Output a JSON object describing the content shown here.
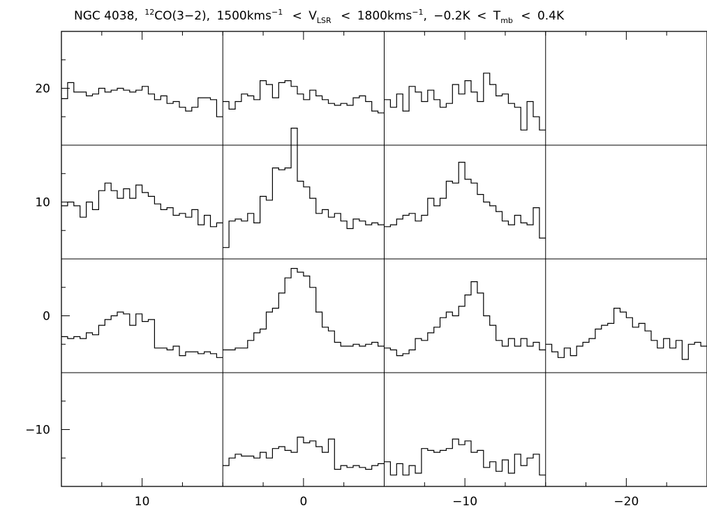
{
  "chart_data": {
    "type": "line",
    "title": {
      "object": "NGC 4038,",
      "iso_sup": "12",
      "line": "CO(3−2),",
      "vmin": "1500kms",
      "vmin_sup": "−1",
      "lt1": "<",
      "v": "V",
      "v_sub": "LSR",
      "lt2": "<",
      "vmax": "1800kms",
      "vmax_sup": "−1",
      "comma": ",",
      "tmin": "−0.2K",
      "lt3": "<",
      "t": "T",
      "t_sub": "mb",
      "lt4": "<",
      "tmax": "0.4K"
    },
    "xlabel": "",
    "ylabel": "",
    "xlim": [
      15,
      -25
    ],
    "ylim": [
      -15,
      25
    ],
    "grid": false,
    "x_ticks": [
      {
        "value": 10,
        "label": "10"
      },
      {
        "value": 0,
        "label": "0"
      },
      {
        "value": -10,
        "label": "−10"
      },
      {
        "value": -20,
        "label": "−20"
      }
    ],
    "y_ticks": [
      {
        "value": 20,
        "label": "20"
      },
      {
        "value": 10,
        "label": "10"
      },
      {
        "value": 0,
        "label": "0"
      },
      {
        "value": -10,
        "label": "−10"
      }
    ],
    "cell_size": 10,
    "spectrum_range": {
      "v_min_kms": 1500,
      "v_max_kms": 1800,
      "t_min_K": -0.2,
      "t_max_K": 0.4
    },
    "spectra": [
      {
        "offset": [
          10,
          20
        ],
        "values": [
          0.045,
          0.13,
          0.08,
          0.08,
          0.06,
          0.07,
          0.1,
          0.08,
          0.09,
          0.1,
          0.09,
          0.08,
          0.09,
          0.11,
          0.07,
          0.04,
          0.06,
          0.02,
          0.03,
          0.0,
          -0.02,
          0.0,
          0.05,
          0.05,
          0.04,
          -0.05
        ]
      },
      {
        "offset": [
          0,
          20
        ],
        "values": [
          0.03,
          -0.01,
          0.03,
          0.07,
          0.06,
          0.04,
          0.14,
          0.12,
          0.05,
          0.13,
          0.14,
          0.11,
          0.07,
          0.04,
          0.09,
          0.06,
          0.04,
          0.02,
          0.01,
          0.02,
          0.01,
          0.05,
          0.06,
          0.03,
          -0.02,
          -0.03
        ]
      },
      {
        "offset": [
          -10,
          20
        ],
        "values": [
          0.04,
          0.0,
          0.07,
          -0.02,
          0.11,
          0.08,
          0.03,
          0.09,
          0.04,
          0.0,
          0.02,
          0.12,
          0.07,
          0.14,
          0.08,
          0.03,
          0.18,
          0.12,
          0.06,
          0.07,
          0.02,
          0.0,
          -0.12,
          0.03,
          -0.05,
          -0.12
        ]
      },
      {
        "offset": [
          10,
          10
        ],
        "values": [
          0.08,
          0.1,
          0.08,
          0.02,
          0.1,
          0.06,
          0.16,
          0.2,
          0.16,
          0.12,
          0.17,
          0.12,
          0.19,
          0.15,
          0.13,
          0.09,
          0.06,
          0.07,
          0.03,
          0.04,
          0.02,
          0.06,
          -0.02,
          0.03,
          -0.03,
          -0.01
        ]
      },
      {
        "offset": [
          0,
          10
        ],
        "values": [
          -0.14,
          0.0,
          0.01,
          0.0,
          0.04,
          -0.01,
          0.13,
          0.11,
          0.28,
          0.27,
          0.28,
          0.49,
          0.21,
          0.18,
          0.12,
          0.04,
          0.06,
          0.02,
          0.04,
          0.0,
          -0.04,
          0.01,
          0.0,
          -0.02,
          -0.01,
          -0.02
        ]
      },
      {
        "offset": [
          -10,
          10
        ],
        "values": [
          -0.03,
          -0.02,
          0.01,
          0.03,
          0.04,
          0.0,
          0.03,
          0.12,
          0.08,
          0.12,
          0.21,
          0.2,
          0.31,
          0.22,
          0.2,
          0.14,
          0.1,
          0.08,
          0.05,
          0.0,
          -0.02,
          0.03,
          -0.01,
          -0.02,
          0.07,
          -0.09
        ]
      },
      {
        "offset": [
          10,
          0
        ],
        "values": [
          -0.01,
          -0.02,
          -0.01,
          -0.02,
          0.01,
          0.0,
          0.05,
          0.08,
          0.1,
          0.12,
          0.11,
          0.05,
          0.11,
          0.07,
          0.08,
          -0.07,
          -0.07,
          -0.08,
          -0.06,
          -0.11,
          -0.09,
          -0.09,
          -0.1,
          -0.09,
          -0.1,
          -0.12
        ]
      },
      {
        "offset": [
          0,
          0
        ],
        "values": [
          -0.08,
          -0.08,
          -0.07,
          -0.07,
          -0.03,
          0.01,
          0.03,
          0.12,
          0.14,
          0.22,
          0.3,
          0.35,
          0.33,
          0.31,
          0.25,
          0.12,
          0.04,
          0.02,
          -0.04,
          -0.06,
          -0.06,
          -0.05,
          -0.06,
          -0.05,
          -0.04,
          -0.06
        ]
      },
      {
        "offset": [
          -10,
          0
        ],
        "values": [
          -0.07,
          -0.08,
          -0.11,
          -0.1,
          -0.08,
          -0.02,
          -0.03,
          0.01,
          0.04,
          0.09,
          0.12,
          0.1,
          0.15,
          0.21,
          0.28,
          0.22,
          0.1,
          0.05,
          -0.03,
          -0.06,
          -0.02,
          -0.06,
          -0.02,
          -0.06,
          -0.04,
          -0.08
        ]
      },
      {
        "offset": [
          -20,
          0
        ],
        "values": [
          -0.05,
          -0.09,
          -0.12,
          -0.07,
          -0.11,
          -0.06,
          -0.04,
          -0.02,
          0.03,
          0.05,
          0.06,
          0.14,
          0.12,
          0.09,
          0.04,
          0.06,
          0.02,
          -0.03,
          -0.07,
          -0.02,
          -0.07,
          -0.03,
          -0.13,
          -0.05,
          -0.04,
          -0.06
        ]
      },
      {
        "offset": [
          0,
          -10
        ],
        "values": [
          -0.09,
          -0.05,
          -0.03,
          -0.04,
          -0.04,
          -0.05,
          -0.02,
          -0.05,
          0.0,
          0.01,
          -0.01,
          -0.02,
          0.06,
          0.03,
          0.04,
          0.01,
          -0.02,
          0.05,
          -0.11,
          -0.09,
          -0.1,
          -0.09,
          -0.1,
          -0.11,
          -0.09,
          -0.08
        ]
      },
      {
        "offset": [
          -10,
          -10
        ],
        "values": [
          -0.07,
          -0.14,
          -0.08,
          -0.14,
          -0.09,
          -0.13,
          0.0,
          -0.01,
          -0.02,
          -0.01,
          0.0,
          0.05,
          0.02,
          0.04,
          -0.02,
          -0.01,
          -0.1,
          -0.07,
          -0.12,
          -0.06,
          -0.13,
          -0.03,
          -0.09,
          -0.05,
          -0.03,
          -0.14
        ]
      }
    ]
  }
}
